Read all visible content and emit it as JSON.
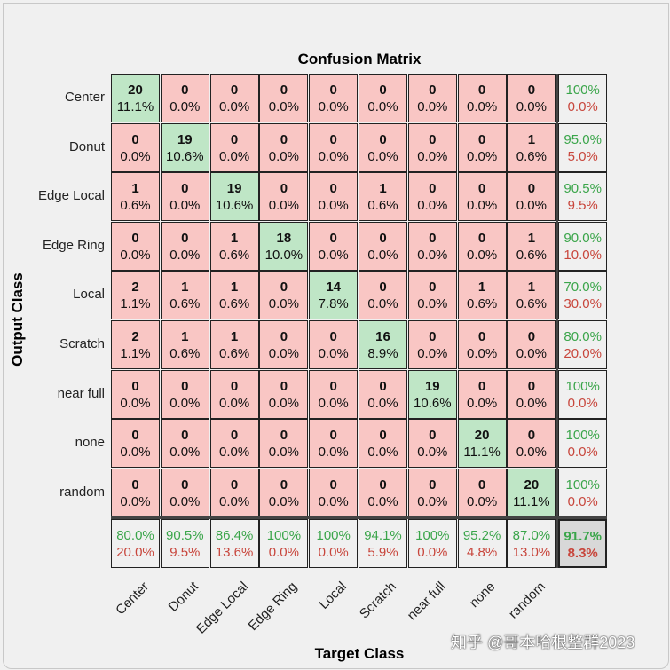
{
  "chart_data": {
    "type": "heatmap",
    "title": "Confusion Matrix",
    "xlabel": "Target Class",
    "ylabel": "Output Class",
    "classes": [
      "Center",
      "Donut",
      "Edge Local",
      "Edge Ring",
      "Local",
      "Scratch",
      "near full",
      "none",
      "random"
    ],
    "counts": [
      [
        20,
        0,
        0,
        0,
        0,
        0,
        0,
        0,
        0
      ],
      [
        0,
        19,
        0,
        0,
        0,
        0,
        0,
        0,
        1
      ],
      [
        1,
        0,
        19,
        0,
        0,
        1,
        0,
        0,
        0
      ],
      [
        0,
        0,
        1,
        18,
        0,
        0,
        0,
        0,
        1
      ],
      [
        2,
        1,
        1,
        0,
        14,
        0,
        0,
        1,
        1
      ],
      [
        2,
        1,
        1,
        0,
        0,
        16,
        0,
        0,
        0
      ],
      [
        0,
        0,
        0,
        0,
        0,
        0,
        19,
        0,
        0
      ],
      [
        0,
        0,
        0,
        0,
        0,
        0,
        0,
        20,
        0
      ],
      [
        0,
        0,
        0,
        0,
        0,
        0,
        0,
        0,
        20
      ]
    ],
    "percents": [
      [
        "11.1%",
        "0.0%",
        "0.0%",
        "0.0%",
        "0.0%",
        "0.0%",
        "0.0%",
        "0.0%",
        "0.0%"
      ],
      [
        "0.0%",
        "10.6%",
        "0.0%",
        "0.0%",
        "0.0%",
        "0.0%",
        "0.0%",
        "0.0%",
        "0.6%"
      ],
      [
        "0.6%",
        "0.0%",
        "10.6%",
        "0.0%",
        "0.0%",
        "0.6%",
        "0.0%",
        "0.0%",
        "0.0%"
      ],
      [
        "0.0%",
        "0.0%",
        "0.6%",
        "10.0%",
        "0.0%",
        "0.0%",
        "0.0%",
        "0.0%",
        "0.6%"
      ],
      [
        "1.1%",
        "0.6%",
        "0.6%",
        "0.0%",
        "7.8%",
        "0.0%",
        "0.0%",
        "0.6%",
        "0.6%"
      ],
      [
        "1.1%",
        "0.6%",
        "0.6%",
        "0.0%",
        "0.0%",
        "8.9%",
        "0.0%",
        "0.0%",
        "0.0%"
      ],
      [
        "0.0%",
        "0.0%",
        "0.0%",
        "0.0%",
        "0.0%",
        "0.0%",
        "10.6%",
        "0.0%",
        "0.0%"
      ],
      [
        "0.0%",
        "0.0%",
        "0.0%",
        "0.0%",
        "0.0%",
        "0.0%",
        "0.0%",
        "11.1%",
        "0.0%"
      ],
      [
        "0.0%",
        "0.0%",
        "0.0%",
        "0.0%",
        "0.0%",
        "0.0%",
        "0.0%",
        "0.0%",
        "11.1%"
      ]
    ],
    "row_summary": [
      [
        "100%",
        "0.0%"
      ],
      [
        "95.0%",
        "5.0%"
      ],
      [
        "90.5%",
        "9.5%"
      ],
      [
        "90.0%",
        "10.0%"
      ],
      [
        "70.0%",
        "30.0%"
      ],
      [
        "80.0%",
        "20.0%"
      ],
      [
        "100%",
        "0.0%"
      ],
      [
        "100%",
        "0.0%"
      ],
      [
        "100%",
        "0.0%"
      ]
    ],
    "col_summary": [
      [
        "80.0%",
        "20.0%"
      ],
      [
        "90.5%",
        "9.5%"
      ],
      [
        "86.4%",
        "13.6%"
      ],
      [
        "100%",
        "0.0%"
      ],
      [
        "100%",
        "0.0%"
      ],
      [
        "94.1%",
        "5.9%"
      ],
      [
        "100%",
        "0.0%"
      ],
      [
        "95.2%",
        "4.8%"
      ],
      [
        "87.0%",
        "13.0%"
      ]
    ],
    "overall": [
      "91.7%",
      "8.3%"
    ],
    "colors": {
      "correct": "#bfe6c6",
      "incorrect": "#f9c6c4",
      "good_text": "#3aa54a",
      "bad_text": "#c8463c"
    }
  },
  "watermark": "知乎 @哥本哈根整群2023"
}
